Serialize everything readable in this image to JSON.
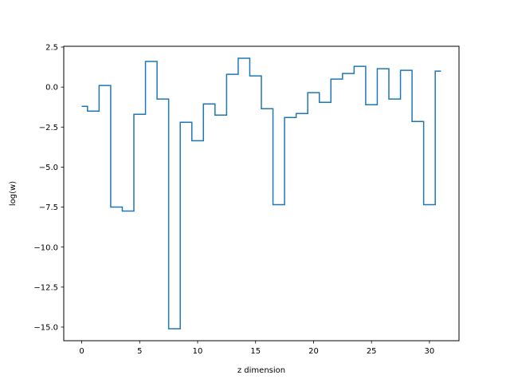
{
  "chart_data": {
    "type": "line",
    "drawstyle": "steps-mid",
    "title": "",
    "xlabel": "z dimension",
    "ylabel": "log(w)",
    "xlim": [
      -1.55,
      32.55
    ],
    "ylim": [
      -15.85,
      2.55
    ],
    "xticks": [
      0,
      5,
      10,
      15,
      20,
      25,
      30
    ],
    "xtick_labels": [
      "0",
      "5",
      "10",
      "15",
      "20",
      "25",
      "30"
    ],
    "yticks": [
      -15.0,
      -12.5,
      -10.0,
      -7.5,
      -5.0,
      -2.5,
      0.0,
      2.5
    ],
    "ytick_labels": [
      "−15.0",
      "−12.5",
      "−10.0",
      "−7.5",
      "−5.0",
      "−2.5",
      "0.0",
      "2.5"
    ],
    "grid": false,
    "legend": "none",
    "series": [
      {
        "color": "#1f77b4",
        "x": [
          0,
          1,
          2,
          3,
          4,
          5,
          6,
          7,
          8,
          9,
          10,
          11,
          12,
          13,
          14,
          15,
          16,
          17,
          18,
          19,
          20,
          21,
          22,
          23,
          24,
          25,
          26,
          27,
          28,
          29,
          30,
          31
        ],
        "values": [
          -1.2,
          -1.5,
          0.1,
          -7.5,
          -7.75,
          -1.7,
          1.6,
          -0.75,
          -15.1,
          -2.2,
          -3.35,
          -1.05,
          -1.75,
          0.8,
          1.8,
          0.7,
          -1.35,
          -7.35,
          -1.9,
          -1.65,
          -0.35,
          -0.95,
          0.5,
          0.85,
          1.3,
          -1.1,
          1.15,
          -0.75,
          1.05,
          -2.15,
          -7.35,
          1.0
        ]
      }
    ]
  }
}
